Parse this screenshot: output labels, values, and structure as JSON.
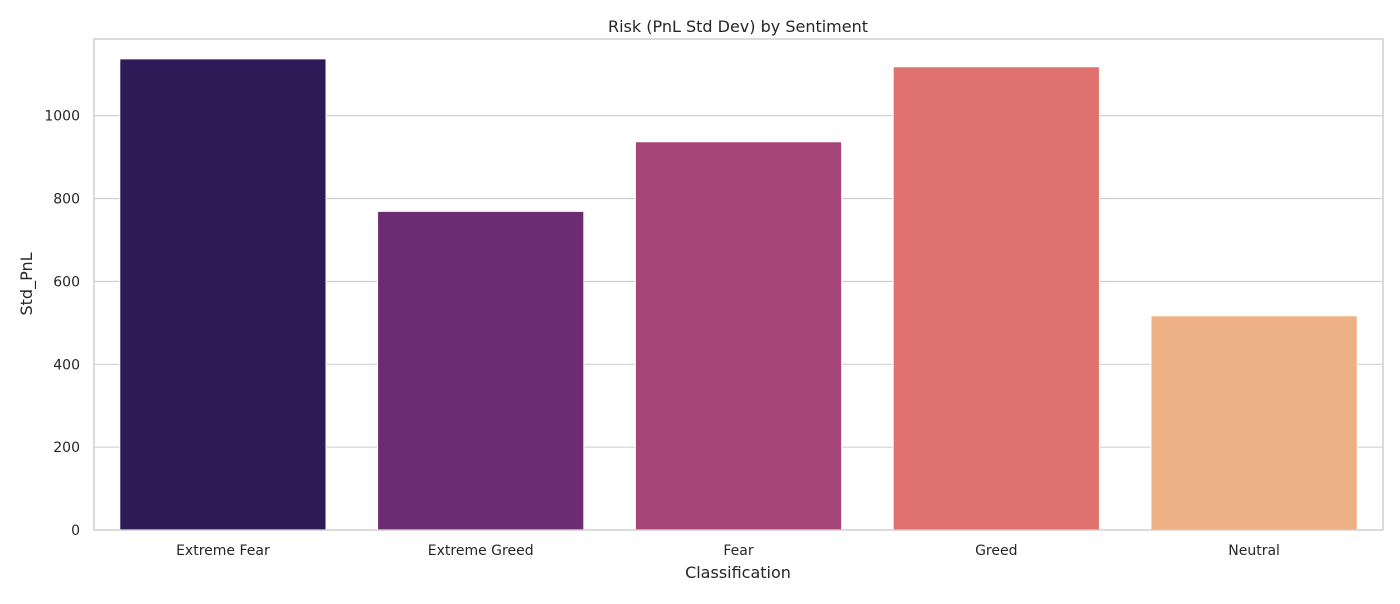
{
  "chart_data": {
    "type": "bar",
    "title": "Risk (PnL Std Dev) by Sentiment",
    "xlabel": "Classification",
    "ylabel": "Std_PnL",
    "categories": [
      "Extreme Fear",
      "Extreme Greed",
      "Fear",
      "Greed",
      "Neutral"
    ],
    "values": [
      1137,
      769,
      937,
      1118,
      517
    ],
    "colors": [
      "#2e1a56",
      "#6b2c72",
      "#a54577",
      "#df716e",
      "#eeb185"
    ],
    "ylim": [
      0,
      1185
    ],
    "yticks": [
      0,
      200,
      400,
      600,
      800,
      1000
    ],
    "grid": "horizontal",
    "legend": "none"
  }
}
